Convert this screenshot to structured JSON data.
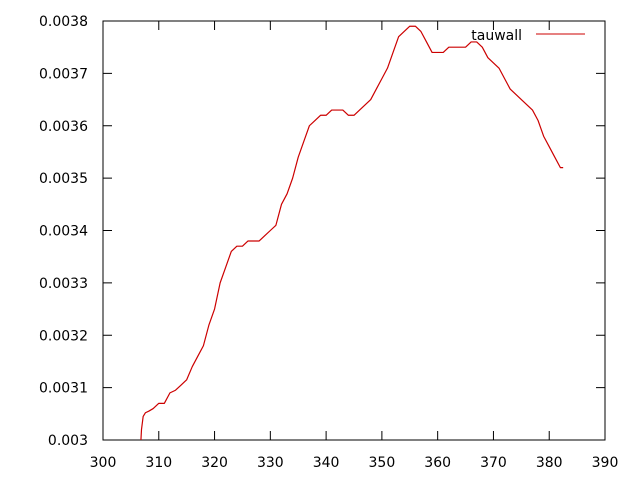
{
  "chart_data": {
    "type": "line",
    "title": "",
    "xlabel": "",
    "ylabel": "",
    "xlim": [
      300,
      390
    ],
    "ylim": [
      0.003,
      0.0038
    ],
    "x_ticks": [
      300,
      310,
      320,
      330,
      340,
      350,
      360,
      370,
      380,
      390
    ],
    "y_ticks": [
      0.003,
      0.0031,
      0.0032,
      0.0033,
      0.0034,
      0.0035,
      0.0036,
      0.0037,
      0.0038
    ],
    "x_tick_labels": [
      "300",
      "310",
      "320",
      "330",
      "340",
      "350",
      "360",
      "370",
      "380",
      "390"
    ],
    "y_tick_labels": [
      "0.003",
      "0.0031",
      "0.0032",
      "0.0033",
      "0.0034",
      "0.0035",
      "0.0036",
      "0.0037",
      "0.0038"
    ],
    "grid": false,
    "legend_position": "top-right",
    "series": [
      {
        "name": "tauwall",
        "color": "#cc0000",
        "x": [
          306.8,
          306.9,
          307.2,
          307.6,
          308.2,
          309.0,
          310.0,
          311.0,
          312.0,
          313.0,
          314.0,
          315.0,
          316.0,
          317.0,
          318.0,
          319.0,
          320.0,
          321.0,
          322.0,
          323.0,
          324.0,
          325.0,
          326.0,
          327.0,
          328.0,
          329.0,
          330.0,
          331.0,
          332.0,
          333.0,
          334.0,
          335.0,
          336.0,
          337.0,
          338.0,
          339.0,
          340.0,
          341.0,
          342.0,
          343.0,
          344.0,
          345.0,
          346.0,
          347.0,
          348.0,
          349.0,
          350.0,
          351.0,
          352.0,
          353.0,
          354.0,
          355.0,
          356.0,
          357.0,
          358.0,
          359.0,
          360.0,
          361.0,
          362.0,
          363.0,
          364.0,
          365.0,
          366.0,
          367.0,
          368.0,
          369.0,
          370.0,
          371.0,
          372.0,
          373.0,
          374.0,
          375.0,
          376.0,
          377.0,
          378.0,
          379.0,
          380.0,
          381.0,
          382.0,
          382.5
        ],
        "y": [
          0.003,
          0.00302,
          0.003045,
          0.003052,
          0.003055,
          0.00306,
          0.00307,
          0.00307,
          0.00309,
          0.003095,
          0.003105,
          0.003115,
          0.00314,
          0.00316,
          0.00318,
          0.00322,
          0.00325,
          0.0033,
          0.00333,
          0.00336,
          0.00337,
          0.00337,
          0.00338,
          0.00338,
          0.00338,
          0.00339,
          0.0034,
          0.00341,
          0.00345,
          0.00347,
          0.0035,
          0.00354,
          0.00357,
          0.0036,
          0.00361,
          0.00362,
          0.00362,
          0.00363,
          0.00363,
          0.00363,
          0.00362,
          0.00362,
          0.00363,
          0.00364,
          0.00365,
          0.00367,
          0.00369,
          0.00371,
          0.00374,
          0.00377,
          0.00378,
          0.00379,
          0.00379,
          0.00378,
          0.00376,
          0.00374,
          0.00374,
          0.00374,
          0.00375,
          0.00375,
          0.00375,
          0.00375,
          0.00376,
          0.00376,
          0.00375,
          0.00373,
          0.00372,
          0.00371,
          0.00369,
          0.00367,
          0.00366,
          0.00365,
          0.00364,
          0.00363,
          0.00361,
          0.00358,
          0.00356,
          0.00354,
          0.00352,
          0.00352
        ]
      }
    ]
  }
}
